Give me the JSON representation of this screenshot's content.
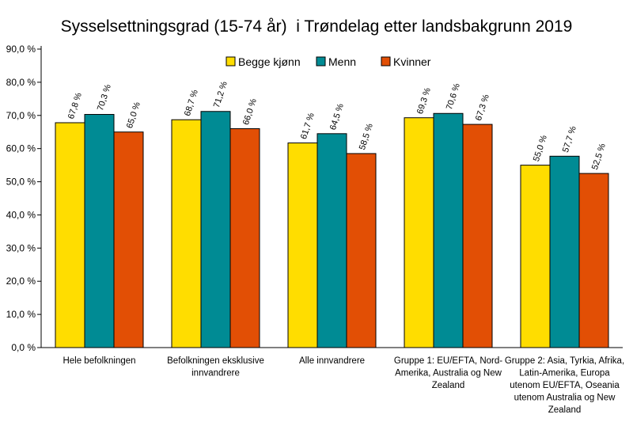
{
  "chart_data": {
    "type": "bar",
    "title": "Sysselsettningsgrad (15-74 år)  i Trøndelag etter landsbakgrunn 2019",
    "categories": [
      [
        "Hele befolkningen"
      ],
      [
        "Befolkningen eksklusive",
        "innvandrere"
      ],
      [
        "Alle innvandrere"
      ],
      [
        "Gruppe 1: EU/EFTA, Nord-",
        "Amerika, Australia og New",
        "Zealand"
      ],
      [
        "Gruppe 2: Asia, Tyrkia, Afrika,",
        "Latin-Amerika, Europa",
        "utenom EU/EFTA, Oseania",
        "utenom Australia og New",
        "Zealand"
      ]
    ],
    "series": [
      {
        "name": "Begge kjønn",
        "color": "#FFDD00",
        "values": [
          67.8,
          68.7,
          61.7,
          69.3,
          55.0
        ],
        "labels": [
          "67,8 %",
          "68,7 %",
          "61,7 %",
          "69,3 %",
          "55,0 %"
        ]
      },
      {
        "name": "Menn",
        "color": "#008B94",
        "values": [
          70.3,
          71.2,
          64.5,
          70.6,
          57.7
        ],
        "labels": [
          "70,3 %",
          "71,2 %",
          "64,5 %",
          "70,6 %",
          "57,7 %"
        ]
      },
      {
        "name": "Kvinner",
        "color": "#E24F05",
        "values": [
          65.0,
          66.0,
          58.5,
          67.3,
          52.5
        ],
        "labels": [
          "65,0 %",
          "66,0 %",
          "58,5 %",
          "67,3 %",
          "52,5 %"
        ]
      }
    ],
    "ylim": [
      0,
      90
    ],
    "yticks": [
      0,
      10,
      20,
      30,
      40,
      50,
      60,
      70,
      80,
      90
    ],
    "ytick_labels": [
      "0,0 %",
      "10,0 %",
      "20,0 %",
      "30,0 %",
      "40,0 %",
      "50,0 %",
      "60,0 %",
      "70,0 %",
      "80,0 %",
      "90,0 %"
    ],
    "xlabel": "",
    "ylabel": "",
    "grid": false,
    "legend_position": "top"
  }
}
